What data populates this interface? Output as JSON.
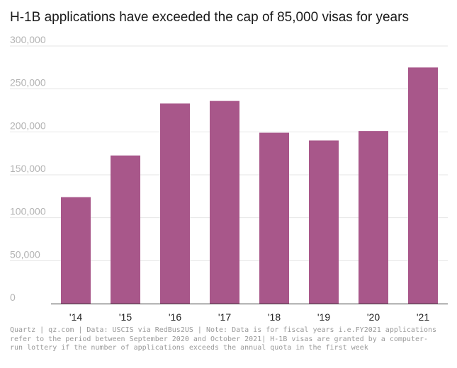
{
  "title": "H-1B applications have exceeded the cap of 85,000 visas for years",
  "footer": "Quartz | qz.com | Data: USCIS via RedBus2US | Note: Data is for fiscal years i.e.FY2021 applications refer to the period between September 2020 and October 2021| H-1B visas are granted by a computer-run lottery if the number of applications exceeds the annual quota in the first week",
  "colors": {
    "bar": "#a8578a",
    "grid": "#e6e6e6",
    "axis": "#333333"
  },
  "chart_data": {
    "type": "bar",
    "title": "H-1B applications have exceeded the cap of 85,000 visas for years",
    "xlabel": "",
    "ylabel": "",
    "categories": [
      "'14",
      "'15",
      "'16",
      "'17",
      "'18",
      "'19",
      "'20",
      "'21"
    ],
    "values": [
      124000,
      172500,
      233000,
      236000,
      199000,
      190000,
      201000,
      275000
    ],
    "ylim": [
      0,
      300000
    ],
    "yticks": [
      0,
      50000,
      100000,
      150000,
      200000,
      250000,
      300000
    ],
    "ytick_labels": [
      "0",
      "50,000",
      "100,000",
      "150,000",
      "200,000",
      "250,000",
      "300,000"
    ],
    "grid": true
  }
}
